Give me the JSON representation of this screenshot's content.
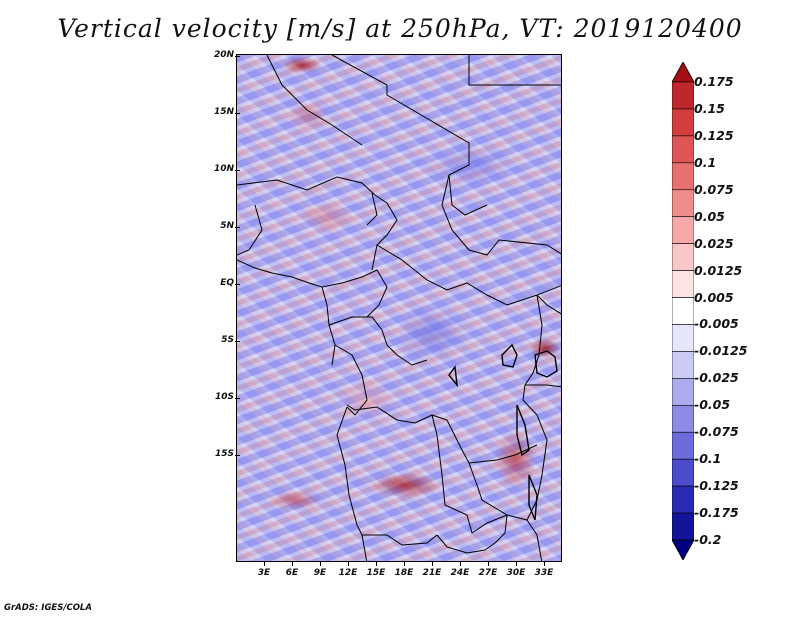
{
  "title": "Vertical velocity [m/s] at 250hPa, VT: 2019120400",
  "lat_labels": [
    "20N",
    "15N",
    "10N",
    "5N",
    "EQ",
    "5S",
    "10S",
    "15S"
  ],
  "lon_labels": [
    "3E",
    "6E",
    "9E",
    "12E",
    "15E",
    "18E",
    "21E",
    "24E",
    "27E",
    "30E",
    "33E"
  ],
  "colorbar": {
    "labels": [
      "0.175",
      "0.15",
      "0.125",
      "0.1",
      "0.075",
      "0.05",
      "0.025",
      "0.0125",
      "0.005",
      "-0.005",
      "-0.0125",
      "-0.025",
      "-0.05",
      "-0.075",
      "-0.1",
      "-0.125",
      "-0.175",
      "-0.2"
    ],
    "colors": [
      "#a50f15",
      "#c0272d",
      "#d43d3d",
      "#de5555",
      "#e87070",
      "#ef8c8c",
      "#f5aaaa",
      "#f9c7c7",
      "#fde3e3",
      "#ffffff",
      "#e6e6fb",
      "#cbcbf5",
      "#ababee",
      "#8c8ce6",
      "#6c6cdb",
      "#4b4bcc",
      "#2a2ab4",
      "#14149a",
      "#000080"
    ]
  },
  "credit": "GrADS: IGES/COLA"
}
